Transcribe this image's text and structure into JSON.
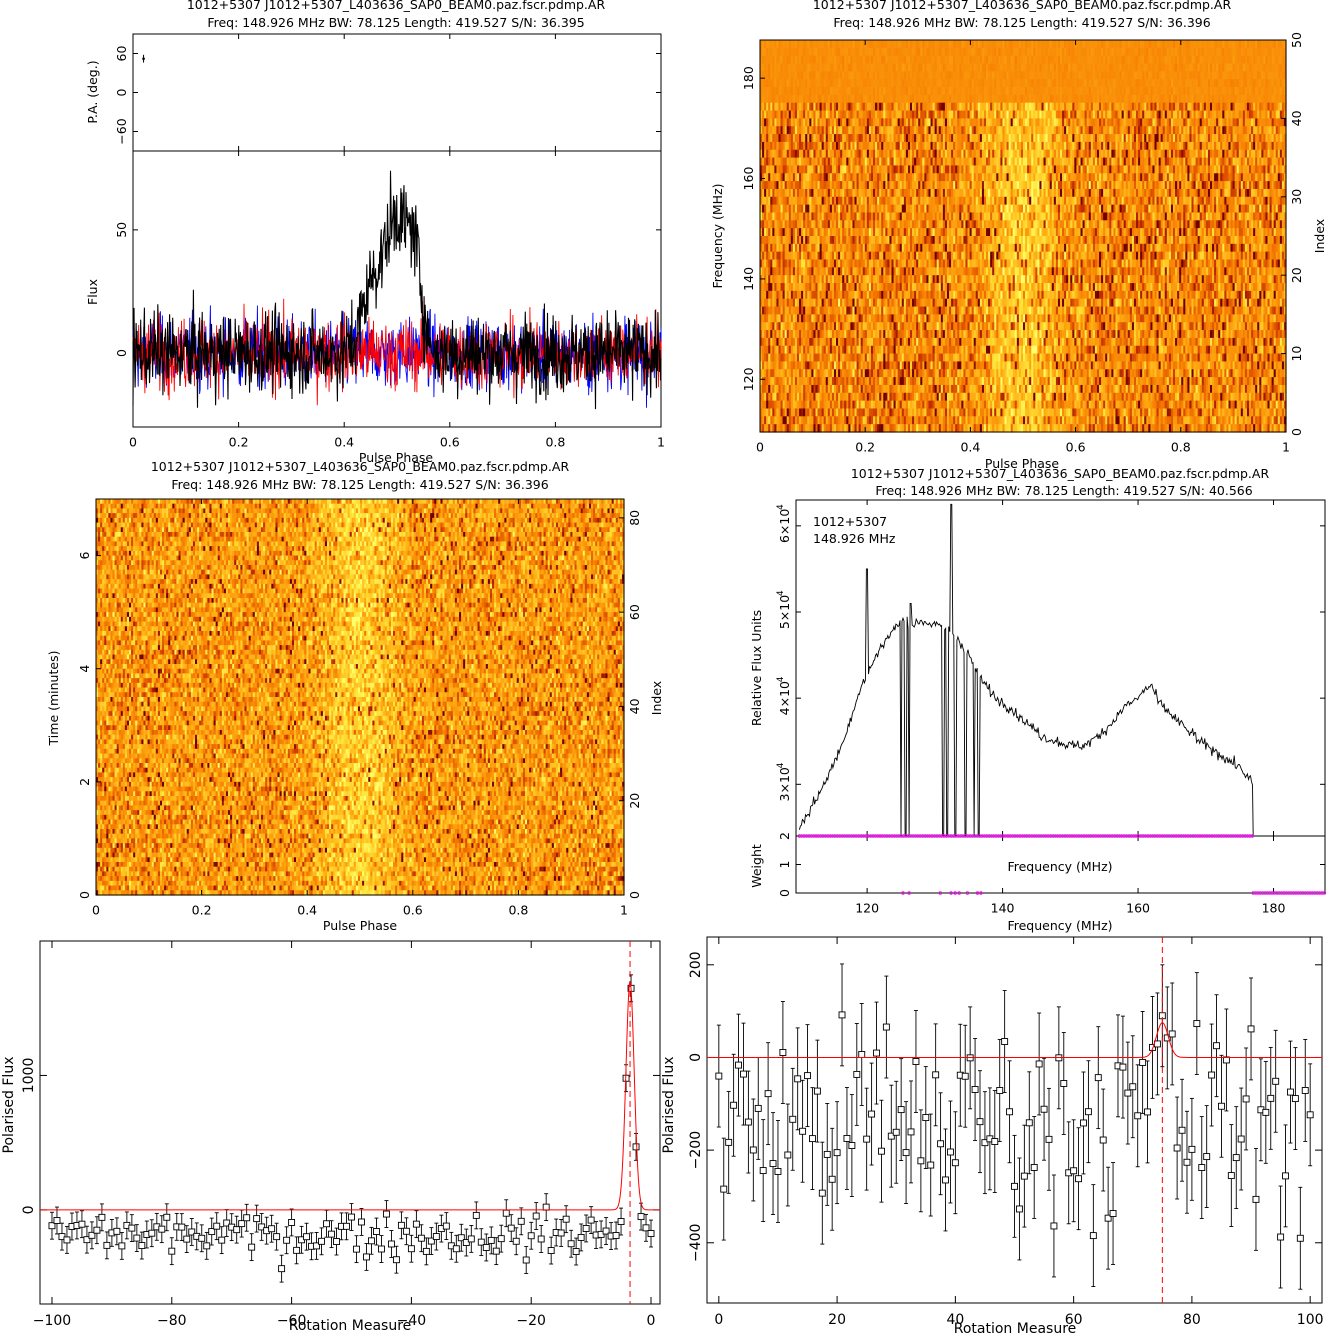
{
  "panel1": {
    "title": "1012+5307  J1012+5307_L403636_SAP0_BEAM0.paz.fscr.pdmp.AR",
    "subtitle": "Freq: 148.926 MHz BW: 78.125 Length: 419.527 S/N: 36.395",
    "pa_ylabel": "P.A. (deg.)",
    "flux_ylabel": "Flux",
    "xlabel": "Pulse Phase"
  },
  "panel2": {
    "title": "1012+5307  J1012+5307_L403636_SAP0_BEAM0.paz.fscr.pdmp.AR",
    "subtitle": "Freq: 148.926 MHz BW: 78.125 Length: 419.527 S/N: 36.396",
    "ylabel": "Frequency (MHz)",
    "y2label": "Index",
    "xlabel": "Pulse Phase"
  },
  "panel3": {
    "title": "1012+5307  J1012+5307_L403636_SAP0_BEAM0.paz.fscr.pdmp.AR",
    "subtitle": "Freq: 148.926 MHz BW: 78.125 Length: 419.527 S/N: 36.396",
    "ylabel": "Time (minutes)",
    "y2label": "Index",
    "xlabel": "Pulse Phase"
  },
  "panel4": {
    "title": "1012+5307  J1012+5307_L403636_SAP0_BEAM0.paz.fscr.pdmp.AR",
    "subtitle": "Freq: 148.926 MHz BW: 78.125 Length: 419.527 S/N: 40.566",
    "legend_line1": "1012+5307",
    "legend_line2": "148.926 MHz",
    "ylabel": "Relative Flux Units",
    "weight_label": "Weight",
    "inner_xlabel": "Frequency (MHz)",
    "xlabel": "Frequency (MHz)"
  },
  "panel5": {
    "ylabel": "Polarised Flux",
    "xlabel": "Rotation Measure"
  },
  "panel6": {
    "ylabel": "Polarised Flux",
    "xlabel": "Rotation Measure"
  },
  "colors": {
    "stokes_i": "#000000",
    "linear": "#ff0000",
    "circular": "#0000ff",
    "fit_line": "#ff0000",
    "weight_points": "#ff00ff",
    "heat_dark": "#7a0000",
    "heat_mid": "#ff8c00",
    "heat_light": "#ffff40"
  },
  "chart_data": [
    {
      "id": "pa-vs-phase",
      "type": "scatter",
      "xlim": [
        0,
        1
      ],
      "ylim": [
        -90,
        90
      ],
      "yticks": [
        -60,
        0,
        60
      ],
      "xticks": [],
      "points": [
        {
          "x": 0.02,
          "y": 52,
          "err": 6
        }
      ]
    },
    {
      "id": "profile",
      "type": "line",
      "xlim": [
        0,
        1
      ],
      "ylim": [
        -30,
        82
      ],
      "xticks": [
        0,
        0.2,
        0.4,
        0.6,
        0.8,
        1
      ],
      "yticks": [
        0,
        50
      ],
      "x_range": [
        0,
        1
      ],
      "n_bins": 1024,
      "series": [
        {
          "role": "total intensity",
          "color": "#000000",
          "components": [
            {
              "center": 0.45,
              "width": 0.018,
              "amp": 22
            },
            {
              "center": 0.5,
              "width": 0.025,
              "amp": 55
            },
            {
              "center": 0.535,
              "width": 0.012,
              "amp": 25
            }
          ],
          "noise_sd": 8
        },
        {
          "role": "linear polarisation",
          "color": "#ff0000",
          "components": [],
          "noise_sd": 7
        },
        {
          "role": "circular polarisation",
          "color": "#0000ff",
          "components": [],
          "noise_sd": 7
        }
      ]
    },
    {
      "id": "freq-vs-phase",
      "type": "heatmap",
      "xlim": [
        0,
        1
      ],
      "ylim": [
        109.5,
        187.6
      ],
      "y2lim": [
        0,
        50
      ],
      "xticks": [
        0,
        0.2,
        0.4,
        0.6,
        0.8,
        1
      ],
      "yticks": [
        120,
        140,
        160,
        180
      ],
      "y2ticks": [
        0,
        10,
        20,
        30,
        40,
        50
      ],
      "rows": 50,
      "cols": 256,
      "pulse_center": 0.5,
      "pulse_width": 0.05,
      "zapped_rows_from_top": 8
    },
    {
      "id": "time-vs-phase",
      "type": "heatmap",
      "xlim": [
        0,
        1
      ],
      "ylim": [
        0,
        7
      ],
      "y2lim": [
        0,
        84
      ],
      "xticks": [
        0,
        0.2,
        0.4,
        0.6,
        0.8,
        1
      ],
      "yticks": [
        0,
        2,
        4,
        6
      ],
      "y2ticks": [
        0,
        20,
        40,
        60,
        80
      ],
      "rows": 84,
      "cols": 256,
      "pulse_center": 0.5,
      "pulse_width": 0.05
    },
    {
      "id": "bandpass",
      "type": "line",
      "xlim": [
        109.5,
        187.6
      ],
      "ylim": [
        24000,
        63000
      ],
      "xticks": [
        120,
        140,
        160,
        180
      ],
      "yticks": [
        30000,
        40000,
        50000,
        60000
      ],
      "ytick_labels": [
        "3×10",
        "4×10",
        "5×10",
        "6×10"
      ],
      "ytick_exponent": "4",
      "points": [
        [
          110,
          25000
        ],
        [
          113,
          29000
        ],
        [
          116,
          34000
        ],
        [
          119,
          41000
        ],
        [
          122,
          46000
        ],
        [
          124,
          48000
        ],
        [
          125,
          49000
        ],
        [
          126,
          49000
        ],
        [
          127,
          48500
        ],
        [
          128,
          49000
        ],
        [
          130,
          48500
        ],
        [
          131.5,
          48000
        ],
        [
          133,
          47500
        ],
        [
          135,
          45000
        ],
        [
          137,
          42000
        ],
        [
          139,
          40000
        ],
        [
          141,
          39000
        ],
        [
          143,
          37500
        ],
        [
          146,
          35500
        ],
        [
          148,
          35000
        ],
        [
          150,
          34500
        ],
        [
          152,
          34500
        ],
        [
          154,
          35500
        ],
        [
          156,
          37000
        ],
        [
          158,
          39000
        ],
        [
          160,
          40000
        ],
        [
          161,
          41000
        ],
        [
          162,
          41500
        ],
        [
          163,
          39500
        ],
        [
          165,
          38000
        ],
        [
          167,
          36500
        ],
        [
          169,
          35000
        ],
        [
          172,
          33500
        ],
        [
          175,
          32000
        ],
        [
          177,
          30000
        ]
      ],
      "spikes": [
        [
          120,
          55000
        ],
        [
          126.5,
          51000
        ],
        [
          132.5,
          62500
        ],
        [
          168.5,
          36000
        ]
      ],
      "dropouts": [
        125,
        125.7,
        126.2,
        131.2,
        131.8,
        133,
        134.5,
        135.8,
        136.5
      ],
      "cutoff": 177,
      "weights": {
        "ylim": [
          0,
          2
        ],
        "yticks": [
          0,
          1,
          2
        ],
        "full_range": [
          110,
          177
        ],
        "zero_range": [
          177,
          187.6
        ],
        "zero_points": [
          125.3,
          126.2,
          130.8,
          132.4,
          133,
          133.6,
          134.8,
          136.3,
          136.8
        ]
      }
    },
    {
      "id": "rm-synthesis-negative",
      "type": "scatter",
      "xlim": [
        -102,
        1.5
      ],
      "ylim": [
        -700,
        2000
      ],
      "xticks": [
        -100,
        -80,
        -60,
        -40,
        -20,
        0
      ],
      "yticks": [
        0,
        1000
      ],
      "x_range": [
        -100,
        0
      ],
      "n_points": 121,
      "base_mean": -180,
      "base_sd": 85,
      "peak": {
        "center": -3.5,
        "amp": 1700,
        "width": 0.7
      },
      "err": 100,
      "fit": {
        "baseline": 0,
        "center": -3.5,
        "amp": 1700,
        "width": 0.7
      },
      "rm_marker": -3.5
    },
    {
      "id": "rm-synthesis-positive",
      "type": "scatter",
      "xlim": [
        -2,
        102
      ],
      "ylim": [
        -530,
        260
      ],
      "xticks": [
        0,
        20,
        40,
        60,
        80,
        100
      ],
      "yticks": [
        -400,
        -200,
        0,
        200
      ],
      "x_range": [
        0,
        100
      ],
      "n_points": 121,
      "base_mean": -140,
      "base_sd": 110,
      "peak": {
        "center": 75,
        "amp": 90,
        "width": 1.0
      },
      "err": 110,
      "fit": {
        "baseline": 0,
        "center": 75,
        "amp": 75,
        "width": 1.0
      },
      "rm_marker": 75
    }
  ]
}
